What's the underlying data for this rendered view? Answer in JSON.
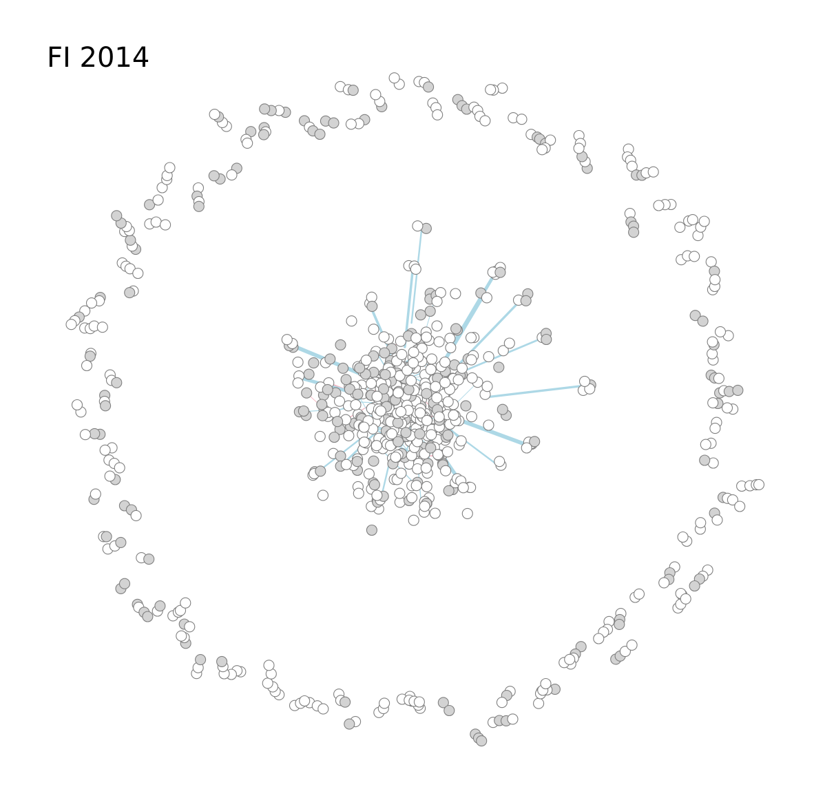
{
  "figure": {
    "title": "FI 2014",
    "colors": {
      "background": "#ffffff",
      "node_fill_white": "#ffffff",
      "node_fill_gray": "#d3d3d3",
      "node_stroke": "#7f7f7f",
      "edge_blue": "#add8e6",
      "edge_pink": "#f4b6c2"
    }
  }
}
